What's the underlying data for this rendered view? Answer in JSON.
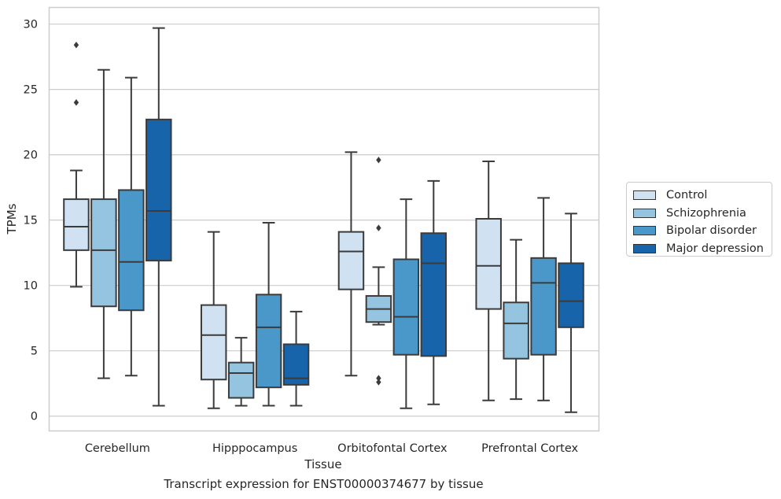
{
  "chart_data": {
    "type": "box",
    "xlabel": "Tissue",
    "ylabel": "TPMs",
    "ylim": [
      -1.1,
      31.3
    ],
    "yticks": [
      0,
      5,
      10,
      15,
      20,
      25,
      30
    ],
    "grid": "horizontal",
    "legend_position": "right",
    "categories": [
      "Cerebellum",
      "Hipppocampus",
      "Orbitofontal Cortex",
      "Prefrontal Cortex"
    ],
    "series": [
      {
        "name": "Control",
        "color": "#d0e1f2",
        "boxes": [
          {
            "min": 9.9,
            "q1": 12.7,
            "median": 14.5,
            "q3": 16.6,
            "max": 18.8,
            "outliers": [
              24.0,
              28.4
            ]
          },
          {
            "min": 0.6,
            "q1": 2.8,
            "median": 6.2,
            "q3": 8.5,
            "max": 14.1,
            "outliers": []
          },
          {
            "min": 3.1,
            "q1": 9.7,
            "median": 12.6,
            "q3": 14.1,
            "max": 20.2,
            "outliers": []
          },
          {
            "min": 1.2,
            "q1": 8.2,
            "median": 11.5,
            "q3": 15.1,
            "max": 19.5,
            "outliers": []
          }
        ]
      },
      {
        "name": "Schizophrenia",
        "color": "#94c4df",
        "boxes": [
          {
            "min": 2.9,
            "q1": 8.4,
            "median": 12.7,
            "q3": 16.6,
            "max": 26.5,
            "outliers": []
          },
          {
            "min": 0.8,
            "q1": 1.4,
            "median": 3.3,
            "q3": 4.1,
            "max": 6.0,
            "outliers": []
          },
          {
            "min": 7.0,
            "q1": 7.2,
            "median": 8.2,
            "q3": 9.2,
            "max": 11.4,
            "outliers": [
              19.6,
              14.4,
              2.9,
              2.6
            ]
          },
          {
            "min": 1.3,
            "q1": 4.4,
            "median": 7.1,
            "q3": 8.7,
            "max": 13.5,
            "outliers": []
          }
        ]
      },
      {
        "name": "Bipolar disorder",
        "color": "#4a98c9",
        "boxes": [
          {
            "min": 3.1,
            "q1": 8.1,
            "median": 11.8,
            "q3": 17.3,
            "max": 25.9,
            "outliers": []
          },
          {
            "min": 0.8,
            "q1": 2.2,
            "median": 6.8,
            "q3": 9.3,
            "max": 14.8,
            "outliers": []
          },
          {
            "min": 0.6,
            "q1": 4.7,
            "median": 7.6,
            "q3": 12.0,
            "max": 16.6,
            "outliers": []
          },
          {
            "min": 1.2,
            "q1": 4.7,
            "median": 10.2,
            "q3": 12.1,
            "max": 16.7,
            "outliers": []
          }
        ]
      },
      {
        "name": "Major depression",
        "color": "#1764ab",
        "boxes": [
          {
            "min": 0.8,
            "q1": 11.9,
            "median": 15.7,
            "q3": 22.7,
            "max": 29.7,
            "outliers": []
          },
          {
            "min": 0.8,
            "q1": 2.4,
            "median": 2.9,
            "q3": 5.5,
            "max": 8.0,
            "outliers": []
          },
          {
            "min": 0.9,
            "q1": 4.6,
            "median": 11.7,
            "q3": 14.0,
            "max": 18.0,
            "outliers": []
          },
          {
            "min": 0.3,
            "q1": 6.8,
            "median": 8.8,
            "q3": 11.7,
            "max": 15.5,
            "outliers": []
          }
        ]
      }
    ]
  },
  "caption": "Transcript expression for ENST00000374677 by tissue"
}
